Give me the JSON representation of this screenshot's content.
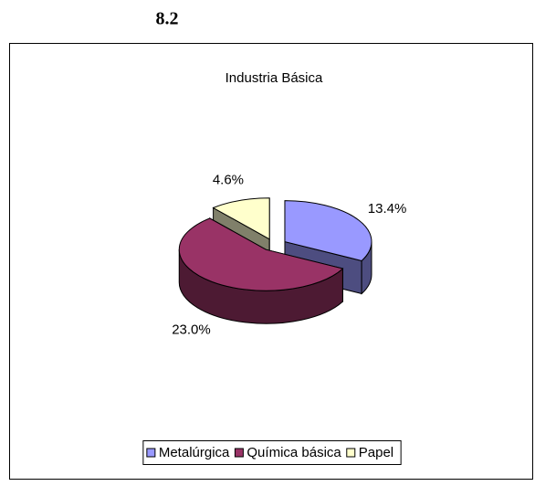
{
  "heading": "8.2",
  "chart_data": {
    "type": "pie3d",
    "title": "Industria Básica",
    "categories": [
      "Metalúrgica",
      "Química básica",
      "Papel"
    ],
    "values": [
      13.4,
      23.0,
      4.6
    ],
    "value_labels": [
      "13.4%",
      "23.0%",
      "4.6%"
    ],
    "colors": [
      "#9999ff",
      "#993366",
      "#ffffcc"
    ],
    "side_colors": [
      "#4d4d80",
      "#4d1a33",
      "#80806a"
    ],
    "legend": "bottom"
  }
}
